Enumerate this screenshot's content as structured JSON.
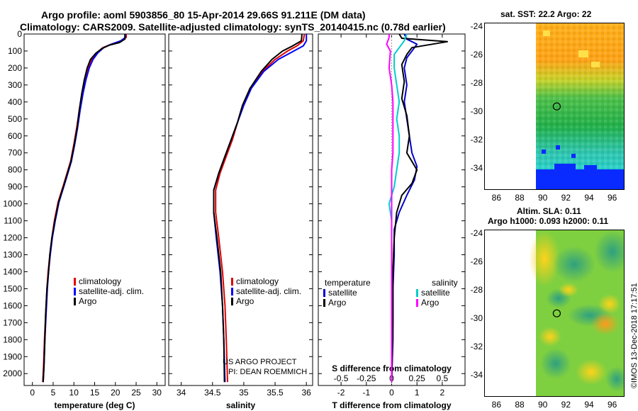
{
  "title": {
    "line1": "Argo profile: aoml 5903856_80 15-Apr-2014 29.66S 91.211E (DM data)",
    "line2": "Climatology: CARS2009. Satellite-adjusted climatology: synTS_20140415.nc (0.78d earlier)"
  },
  "chart_data": [
    {
      "type": "line",
      "id": "temperature",
      "xlabel": "temperature (deg C)",
      "ylabel": "",
      "xlim": [
        -2,
        32
      ],
      "ylim": [
        2070,
        0
      ],
      "xticks": [
        0,
        5,
        10,
        15,
        20,
        25,
        30
      ],
      "yticks": [
        0,
        100,
        200,
        300,
        400,
        500,
        600,
        700,
        800,
        900,
        1000,
        1100,
        1200,
        1300,
        1400,
        1500,
        1600,
        1700,
        1800,
        1900,
        2000
      ],
      "legend": [
        "climatology",
        "satellite-adj. clim.",
        "Argo"
      ],
      "series": [
        {
          "name": "climatology",
          "color": "#e00000",
          "points": [
            [
              22.6,
              0
            ],
            [
              22.6,
              20
            ],
            [
              21.5,
              40
            ],
            [
              19.0,
              60
            ],
            [
              17.0,
              80
            ],
            [
              15.5,
              110
            ],
            [
              14.3,
              150
            ],
            [
              13.4,
              200
            ],
            [
              12.6,
              270
            ],
            [
              11.9,
              350
            ],
            [
              11.3,
              450
            ],
            [
              10.7,
              550
            ],
            [
              10.0,
              650
            ],
            [
              9.2,
              750
            ],
            [
              7.6,
              880
            ],
            [
              6.2,
              990
            ],
            [
              5.3,
              1100
            ],
            [
              4.7,
              1200
            ],
            [
              4.2,
              1300
            ],
            [
              3.8,
              1400
            ],
            [
              3.5,
              1500
            ],
            [
              3.2,
              1650
            ],
            [
              2.9,
              1800
            ],
            [
              2.7,
              1950
            ],
            [
              2.5,
              2050
            ]
          ]
        },
        {
          "name": "satellite-adj. clim.",
          "color": "#0000ff",
          "points": [
            [
              22.4,
              0
            ],
            [
              22.4,
              20
            ],
            [
              21.3,
              40
            ],
            [
              19.0,
              60
            ],
            [
              17.2,
              80
            ],
            [
              15.8,
              110
            ],
            [
              14.6,
              150
            ],
            [
              13.7,
              200
            ],
            [
              12.9,
              270
            ],
            [
              12.2,
              350
            ],
            [
              11.5,
              450
            ],
            [
              10.9,
              550
            ],
            [
              10.2,
              650
            ],
            [
              9.4,
              750
            ],
            [
              7.8,
              880
            ],
            [
              6.4,
              990
            ],
            [
              5.5,
              1100
            ],
            [
              4.8,
              1200
            ],
            [
              4.3,
              1300
            ],
            [
              3.9,
              1400
            ],
            [
              3.6,
              1500
            ],
            [
              3.3,
              1650
            ],
            [
              3.0,
              1800
            ],
            [
              2.8,
              1950
            ],
            [
              2.6,
              2050
            ]
          ]
        },
        {
          "name": "Argo",
          "color": "#000000",
          "points": [
            [
              22.3,
              0
            ],
            [
              22.3,
              30
            ],
            [
              21.0,
              50
            ],
            [
              18.6,
              65
            ],
            [
              16.8,
              85
            ],
            [
              15.2,
              115
            ],
            [
              14.0,
              150
            ],
            [
              13.2,
              200
            ],
            [
              12.5,
              270
            ],
            [
              11.9,
              350
            ],
            [
              11.3,
              450
            ],
            [
              10.8,
              550
            ],
            [
              10.1,
              650
            ],
            [
              9.3,
              750
            ],
            [
              7.7,
              880
            ],
            [
              6.3,
              990
            ],
            [
              5.4,
              1100
            ],
            [
              4.7,
              1200
            ],
            [
              4.2,
              1300
            ],
            [
              3.9,
              1400
            ],
            [
              3.5,
              1500
            ],
            [
              3.2,
              1650
            ],
            [
              3.0,
              1800
            ],
            [
              2.8,
              1950
            ],
            [
              2.6,
              2050
            ]
          ]
        }
      ]
    },
    {
      "type": "line",
      "id": "salinity",
      "xlabel": "salinity",
      "xlim": [
        33.8,
        36.1
      ],
      "ylim": [
        2070,
        0
      ],
      "xticks": [
        34,
        34.5,
        35,
        35.5,
        36
      ],
      "xticklabels": [
        "34",
        "34.5",
        "35",
        "35.5",
        "36"
      ],
      "legend": [
        "climatology",
        "satellite-adj. clim.",
        "Argo"
      ],
      "series": [
        {
          "name": "climatology",
          "color": "#e00000",
          "points": [
            [
              35.97,
              0
            ],
            [
              35.95,
              40
            ],
            [
              35.85,
              70
            ],
            [
              35.7,
              100
            ],
            [
              35.5,
              150
            ],
            [
              35.3,
              220
            ],
            [
              35.1,
              320
            ],
            [
              34.98,
              420
            ],
            [
              34.9,
              520
            ],
            [
              34.82,
              620
            ],
            [
              34.72,
              720
            ],
            [
              34.62,
              820
            ],
            [
              34.55,
              920
            ],
            [
              34.55,
              1050
            ],
            [
              34.6,
              1200
            ],
            [
              34.66,
              1400
            ],
            [
              34.7,
              1600
            ],
            [
              34.72,
              1800
            ],
            [
              34.74,
              2050
            ]
          ]
        },
        {
          "name": "satellite-adj. clim.",
          "color": "#0000ff",
          "points": [
            [
              36.0,
              0
            ],
            [
              36.0,
              40
            ],
            [
              35.95,
              70
            ],
            [
              35.8,
              100
            ],
            [
              35.55,
              150
            ],
            [
              35.32,
              220
            ],
            [
              35.12,
              320
            ],
            [
              35.0,
              420
            ],
            [
              34.9,
              520
            ],
            [
              34.8,
              620
            ],
            [
              34.7,
              720
            ],
            [
              34.6,
              820
            ],
            [
              34.52,
              920
            ],
            [
              34.52,
              1050
            ],
            [
              34.56,
              1200
            ],
            [
              34.62,
              1400
            ],
            [
              34.66,
              1600
            ],
            [
              34.68,
              1800
            ],
            [
              34.7,
              2050
            ]
          ]
        },
        {
          "name": "Argo",
          "color": "#000000",
          "points": [
            [
              35.93,
              0
            ],
            [
              35.92,
              40
            ],
            [
              35.78,
              70
            ],
            [
              35.62,
              100
            ],
            [
              35.45,
              150
            ],
            [
              35.28,
              220
            ],
            [
              35.1,
              320
            ],
            [
              34.98,
              420
            ],
            [
              34.9,
              520
            ],
            [
              34.8,
              620
            ],
            [
              34.7,
              720
            ],
            [
              34.6,
              820
            ],
            [
              34.52,
              920
            ],
            [
              34.52,
              1050
            ],
            [
              34.57,
              1200
            ],
            [
              34.63,
              1400
            ],
            [
              34.66,
              1600
            ],
            [
              34.68,
              1800
            ],
            [
              34.69,
              2050
            ]
          ]
        }
      ]
    },
    {
      "type": "line",
      "id": "difference",
      "xlabel": "T difference from climatology",
      "xlabel_top": "S difference from climatology",
      "xlim": [
        -2.9,
        2.9
      ],
      "ylim": [
        2070,
        0
      ],
      "xticks": [
        -2,
        -1,
        0,
        1,
        2
      ],
      "xticks_top": [
        -2,
        -1,
        0,
        1,
        2
      ],
      "xticklabels_top": [
        "-0.5",
        "-0.25",
        "0",
        "0.25",
        "0.5"
      ],
      "legend_left_title": "temperature",
      "legend_right_title": "salinity",
      "legend": [
        "satellite",
        "Argo",
        "satellite",
        "Argo"
      ],
      "series": [
        {
          "name": "temperature satellite",
          "color": "#0000cc",
          "points": [
            [
              0.5,
              0
            ],
            [
              0.6,
              30
            ],
            [
              1.0,
              60
            ],
            [
              0.8,
              100
            ],
            [
              0.6,
              140
            ],
            [
              0.5,
              200
            ],
            [
              0.6,
              300
            ],
            [
              0.5,
              400
            ],
            [
              0.6,
              500
            ],
            [
              0.7,
              600
            ],
            [
              0.8,
              700
            ],
            [
              1.0,
              780
            ],
            [
              0.9,
              860
            ],
            [
              0.6,
              950
            ],
            [
              0.3,
              1050
            ],
            [
              0.1,
              1150
            ],
            [
              0.1,
              1300
            ],
            [
              0.05,
              1500
            ],
            [
              0.05,
              1800
            ],
            [
              0.0,
              2050
            ]
          ]
        },
        {
          "name": "temperature Argo",
          "color": "#000000",
          "points": [
            [
              0.3,
              0
            ],
            [
              0.4,
              25
            ],
            [
              2.2,
              45
            ],
            [
              0.8,
              80
            ],
            [
              0.6,
              120
            ],
            [
              0.4,
              180
            ],
            [
              0.5,
              280
            ],
            [
              0.4,
              380
            ],
            [
              0.6,
              480
            ],
            [
              0.7,
              600
            ],
            [
              0.6,
              700
            ],
            [
              1.0,
              800
            ],
            [
              0.8,
              880
            ],
            [
              0.4,
              950
            ],
            [
              0.2,
              1050
            ],
            [
              0.1,
              1200
            ],
            [
              0.05,
              1400
            ],
            [
              0.05,
              1700
            ],
            [
              0.0,
              2050
            ]
          ]
        },
        {
          "name": "salinity satellite",
          "color": "#00cccc",
          "points": [
            [
              0.6,
              0
            ],
            [
              0.5,
              40
            ],
            [
              0.3,
              80
            ],
            [
              0.1,
              120
            ],
            [
              0.1,
              200
            ],
            [
              0.2,
              300
            ],
            [
              0.3,
              400
            ],
            [
              0.2,
              500
            ],
            [
              0.3,
              600
            ],
            [
              0.3,
              700
            ],
            [
              0.2,
              800
            ],
            [
              0.1,
              900
            ],
            [
              -0.1,
              1000
            ],
            [
              0.0,
              1100
            ],
            [
              0.0,
              1300
            ],
            [
              0.0,
              1600
            ],
            [
              0.0,
              2050
            ]
          ]
        },
        {
          "name": "salinity Argo",
          "color": "#ff00ff",
          "points": [
            [
              -0.1,
              0
            ],
            [
              -0.1,
              20
            ],
            [
              -0.2,
              60
            ],
            [
              -0.05,
              100
            ],
            [
              -0.1,
              200
            ],
            [
              0.0,
              300
            ],
            [
              0.05,
              400
            ],
            [
              0.05,
              500
            ],
            [
              0.05,
              600
            ],
            [
              0.05,
              700
            ],
            [
              0.0,
              800
            ],
            [
              0.0,
              900
            ],
            [
              0.0,
              1000
            ],
            [
              0.0,
              1200
            ],
            [
              0.0,
              1500
            ],
            [
              0.0,
              2050
            ]
          ]
        }
      ]
    },
    {
      "type": "heatmap",
      "id": "sst-map",
      "title": "sat. SST: 22.2 Argo: 22",
      "xlim": [
        85,
        97
      ],
      "ylim": [
        -35.5,
        -23.8
      ],
      "xticks": [
        86,
        88,
        90,
        92,
        94,
        96
      ],
      "yticks": [
        -24,
        -26,
        -28,
        -30,
        -32,
        -34
      ],
      "argo_position": [
        91.211,
        -29.66
      ]
    },
    {
      "type": "heatmap",
      "id": "sla-map",
      "title": "Altim. SLA: 0.11",
      "subtitle": "Argo h1000: 0.093 h2000: 0.11",
      "xlim": [
        85,
        97
      ],
      "ylim": [
        -35.5,
        -23.8
      ],
      "xticks": [
        86,
        88,
        90,
        92,
        94,
        96
      ],
      "yticks": [
        -24,
        -26,
        -28,
        -30,
        -32,
        -34
      ],
      "argo_position": [
        91.211,
        -29.66
      ]
    }
  ],
  "credits": {
    "project": "US ARGO PROJECT",
    "pi": "PI: DEAN ROEMMICH",
    "imos": "©IMOS 13-Dec-2018 17:17:51"
  }
}
